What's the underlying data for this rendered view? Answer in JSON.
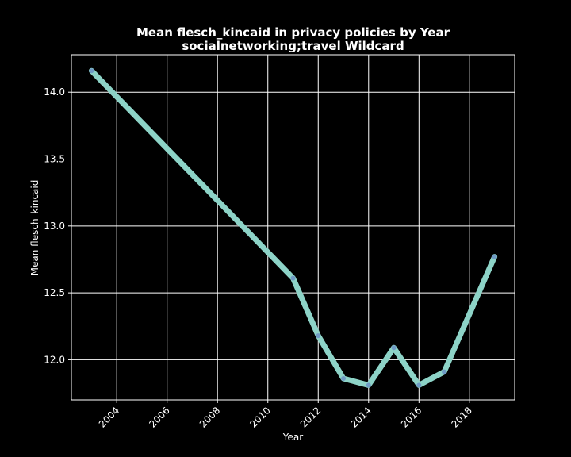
{
  "chart_data": {
    "type": "line",
    "title": "Mean flesch_kincaid in privacy policies by Year",
    "subtitle": "socialnetworking;travel Wildcard",
    "xlabel": "Year",
    "ylabel": "Mean flesch_kincaid",
    "xlim": [
      2002.2,
      2019.8
    ],
    "ylim": [
      11.7,
      14.28
    ],
    "xticks": [
      "2004",
      "2006",
      "2008",
      "2010",
      "2012",
      "2014",
      "2016",
      "2018"
    ],
    "yticks": [
      "12.0",
      "12.5",
      "13.0",
      "13.5",
      "14.0"
    ],
    "grid": true,
    "colors": {
      "background": "#000000",
      "grid": "#ffffff",
      "line": "#8dd3c7",
      "marker": "#6a8fc4"
    },
    "series": [
      {
        "x": [
          2003,
          2011,
          2012,
          2013,
          2014,
          2015,
          2016,
          2017,
          2019
        ],
        "y": [
          14.16,
          12.61,
          12.18,
          11.86,
          11.81,
          12.09,
          11.81,
          11.91,
          12.77
        ]
      }
    ]
  }
}
